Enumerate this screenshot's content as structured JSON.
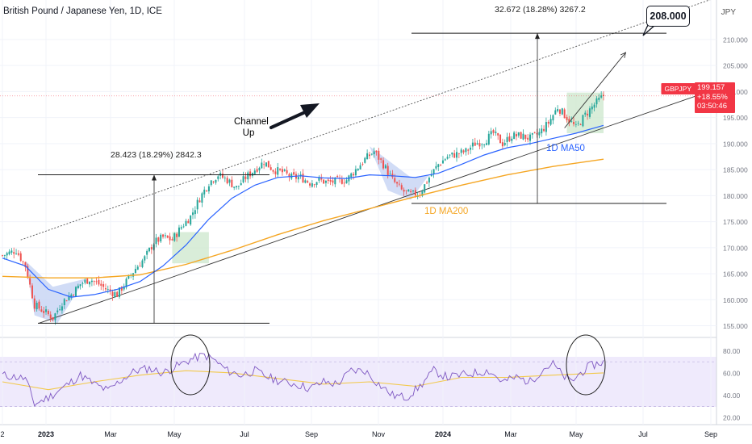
{
  "header": {
    "title": "British Pound / Japanese Yen, 1D, ICE",
    "currency": "JPY"
  },
  "price_label": {
    "symbol": "GBPJPY",
    "price": "199.157",
    "change": "+18.55%",
    "countdown": "03:50:46"
  },
  "target": "208.000",
  "annotations": {
    "measure_2023": "28.423 (18.29%) 2842.3",
    "measure_2024": "32.672 (18.28%) 3267.2",
    "channel_line1": "Channel",
    "channel_line2": "Up",
    "ma50": "1D MA50",
    "ma200": "1D MA200"
  },
  "colors": {
    "up_candle": "#26a69a",
    "down_candle": "#ef5350",
    "ma50": "#2962ff",
    "ma200": "#f5a623",
    "rsi": "#7e57c2",
    "rsi_ma": "#f2c94c",
    "highlight_blue": "#c9d6f5",
    "highlight_green": "#cfe9d0",
    "label_red": "#f23645"
  },
  "chart_data": {
    "type": "candlestick",
    "x_tick_labels": [
      "2",
      "2023",
      "Mar",
      "May",
      "Jul",
      "Sep",
      "Nov",
      "2024",
      "Mar",
      "May",
      "Jul",
      "Sep"
    ],
    "y_tick_labels": [
      "210.000",
      "205.000",
      "200.000",
      "195.000",
      "190.000",
      "185.000",
      "180.000",
      "175.000",
      "170.000",
      "165.000",
      "160.000",
      "155.000"
    ],
    "rsi_tick_labels": [
      "80.00",
      "60.00",
      "40.00",
      "20.00"
    ],
    "ylim": [
      154,
      212
    ],
    "rsi_ylim": [
      18,
      86
    ],
    "price_path": [
      [
        0,
        168.5
      ],
      [
        6,
        169.5
      ],
      [
        10,
        166.5
      ],
      [
        14,
        159
      ],
      [
        18,
        157.8
      ],
      [
        22,
        156.5
      ],
      [
        26,
        159.5
      ],
      [
        30,
        161
      ],
      [
        34,
        163
      ],
      [
        38,
        164
      ],
      [
        42,
        163
      ],
      [
        46,
        161.8
      ],
      [
        50,
        161
      ],
      [
        54,
        163.5
      ],
      [
        58,
        166
      ],
      [
        62,
        168
      ],
      [
        66,
        171
      ],
      [
        70,
        172
      ],
      [
        74,
        171.5
      ],
      [
        78,
        174
      ],
      [
        82,
        176
      ],
      [
        86,
        179.5
      ],
      [
        90,
        182.5
      ],
      [
        94,
        184
      ],
      [
        98,
        183
      ],
      [
        102,
        181.5
      ],
      [
        106,
        183.5
      ],
      [
        110,
        185
      ],
      [
        114,
        186.5
      ],
      [
        118,
        185
      ],
      [
        122,
        184.5
      ],
      [
        126,
        183.5
      ],
      [
        130,
        183.5
      ],
      [
        134,
        182.5
      ],
      [
        138,
        183
      ],
      [
        142,
        182.5
      ],
      [
        146,
        182.8
      ],
      [
        150,
        183
      ],
      [
        154,
        185
      ],
      [
        158,
        187
      ],
      [
        162,
        188.5
      ],
      [
        166,
        186
      ],
      [
        170,
        183
      ],
      [
        174,
        181
      ],
      [
        178,
        180.2
      ],
      [
        182,
        180.5
      ],
      [
        186,
        183.5
      ],
      [
        190,
        186
      ],
      [
        194,
        187.5
      ],
      [
        198,
        188
      ],
      [
        202,
        188.5
      ],
      [
        206,
        190
      ],
      [
        210,
        190.5
      ],
      [
        214,
        192
      ],
      [
        218,
        190
      ],
      [
        222,
        191.5
      ],
      [
        226,
        191.5
      ],
      [
        230,
        191
      ],
      [
        234,
        192
      ],
      [
        238,
        194
      ],
      [
        242,
        197
      ],
      [
        246,
        195
      ],
      [
        250,
        193
      ],
      [
        254,
        195.5
      ],
      [
        258,
        197.5
      ],
      [
        262,
        199.2
      ]
    ],
    "ma50_path": [
      [
        0,
        168
      ],
      [
        10,
        166.5
      ],
      [
        20,
        162
      ],
      [
        30,
        160.5
      ],
      [
        40,
        161
      ],
      [
        50,
        162
      ],
      [
        60,
        163.5
      ],
      [
        70,
        166.5
      ],
      [
        80,
        170.5
      ],
      [
        90,
        175.5
      ],
      [
        100,
        179.5
      ],
      [
        110,
        182
      ],
      [
        120,
        183.5
      ],
      [
        130,
        183.8
      ],
      [
        140,
        183.4
      ],
      [
        150,
        183.3
      ],
      [
        160,
        184
      ],
      [
        170,
        183.8
      ],
      [
        180,
        183.5
      ],
      [
        190,
        184.3
      ],
      [
        200,
        186
      ],
      [
        210,
        187.8
      ],
      [
        220,
        189.2
      ],
      [
        230,
        190
      ],
      [
        240,
        191
      ],
      [
        250,
        192
      ],
      [
        262,
        193.5
      ]
    ],
    "ma200_path": [
      [
        0,
        164.5
      ],
      [
        20,
        164.2
      ],
      [
        40,
        164.2
      ],
      [
        60,
        164.8
      ],
      [
        80,
        166.8
      ],
      [
        100,
        169.5
      ],
      [
        120,
        172.5
      ],
      [
        140,
        175.2
      ],
      [
        160,
        177.5
      ],
      [
        180,
        179.8
      ],
      [
        200,
        182
      ],
      [
        220,
        184
      ],
      [
        240,
        185.6
      ],
      [
        262,
        187
      ]
    ],
    "rsi_path": [
      [
        0,
        58
      ],
      [
        10,
        55
      ],
      [
        14,
        32
      ],
      [
        20,
        38
      ],
      [
        26,
        46
      ],
      [
        34,
        58
      ],
      [
        40,
        50
      ],
      [
        46,
        44
      ],
      [
        52,
        54
      ],
      [
        58,
        62
      ],
      [
        64,
        64
      ],
      [
        70,
        60
      ],
      [
        76,
        66
      ],
      [
        82,
        72
      ],
      [
        88,
        76
      ],
      [
        92,
        72
      ],
      [
        98,
        62
      ],
      [
        104,
        58
      ],
      [
        110,
        62
      ],
      [
        116,
        56
      ],
      [
        122,
        52
      ],
      [
        128,
        50
      ],
      [
        134,
        46
      ],
      [
        140,
        52
      ],
      [
        146,
        50
      ],
      [
        152,
        62
      ],
      [
        158,
        62
      ],
      [
        164,
        50
      ],
      [
        170,
        40
      ],
      [
        176,
        38
      ],
      [
        182,
        48
      ],
      [
        188,
        62
      ],
      [
        194,
        56
      ],
      [
        200,
        58
      ],
      [
        206,
        60
      ],
      [
        212,
        62
      ],
      [
        218,
        52
      ],
      [
        224,
        56
      ],
      [
        230,
        52
      ],
      [
        236,
        64
      ],
      [
        240,
        68
      ],
      [
        244,
        58
      ],
      [
        248,
        52
      ],
      [
        252,
        60
      ],
      [
        256,
        66
      ],
      [
        262,
        70
      ]
    ],
    "rsi_ma_path": [
      [
        0,
        52
      ],
      [
        20,
        45
      ],
      [
        40,
        52
      ],
      [
        60,
        58
      ],
      [
        80,
        62
      ],
      [
        100,
        60
      ],
      [
        120,
        55
      ],
      [
        140,
        50
      ],
      [
        160,
        52
      ],
      [
        180,
        48
      ],
      [
        200,
        56
      ],
      [
        220,
        56
      ],
      [
        240,
        58
      ],
      [
        262,
        60
      ]
    ],
    "channel_upper": [
      [
        8,
        171.5
      ],
      [
        262,
        210.5
      ]
    ],
    "channel_lower": [
      [
        16,
        155.5
      ],
      [
        262,
        193
      ]
    ],
    "target_arrow": [
      [
        245,
        193
      ],
      [
        259,
        207.5
      ]
    ],
    "measure_2023": {
      "from": 155.5,
      "to": 184.0
    },
    "measure_2024": {
      "from": 178.5,
      "to": 211.2
    }
  }
}
